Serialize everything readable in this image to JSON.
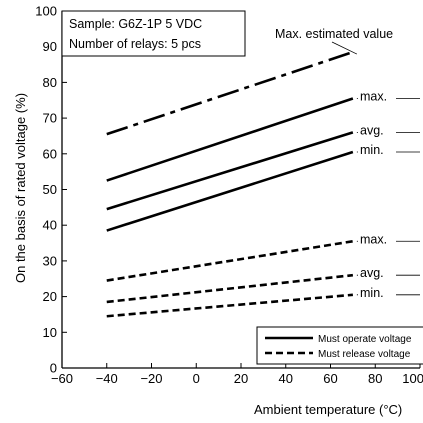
{
  "chart_data": {
    "type": "line",
    "title": "",
    "xlabel": "Ambient temperature (°C)",
    "ylabel": "On the basis of rated voltage (%)",
    "xlim": [
      -60,
      100
    ],
    "ylim": [
      0,
      100
    ],
    "xticks": [
      -60,
      -40,
      -20,
      0,
      20,
      40,
      60,
      80,
      100
    ],
    "yticks": [
      0,
      10,
      20,
      30,
      40,
      50,
      60,
      70,
      80,
      90,
      100
    ],
    "xtick_labels": [
      "−60",
      "−40",
      "−20",
      "0",
      "20",
      "40",
      "60",
      "80",
      "100"
    ],
    "ytick_labels": [
      "0",
      "10",
      "20",
      "30",
      "40",
      "50",
      "60",
      "70",
      "80",
      "90",
      "100"
    ],
    "grid": false,
    "sample_text": "Sample: G6Z-1P 5 VDC",
    "relays_text": "Number of relays: 5 pcs",
    "series": [
      {
        "name": "Max. estimated value",
        "style": "dash-dot",
        "group": "operate",
        "x": [
          -40,
          70
        ],
        "y": [
          65.5,
          88.5
        ]
      },
      {
        "name": "max.",
        "style": "solid",
        "group": "operate",
        "x": [
          -40,
          70
        ],
        "y": [
          52.5,
          75.5
        ]
      },
      {
        "name": "avg.",
        "style": "solid",
        "group": "operate",
        "x": [
          -40,
          70
        ],
        "y": [
          44.5,
          66
        ]
      },
      {
        "name": "min.",
        "style": "solid",
        "group": "operate",
        "x": [
          -40,
          70
        ],
        "y": [
          38.5,
          60.5
        ]
      },
      {
        "name": "max.",
        "style": "dashed",
        "group": "release",
        "x": [
          -40,
          70
        ],
        "y": [
          24.5,
          35.5
        ]
      },
      {
        "name": "avg.",
        "style": "dashed",
        "group": "release",
        "x": [
          -40,
          70
        ],
        "y": [
          18.5,
          26
        ]
      },
      {
        "name": "min.",
        "style": "dashed",
        "group": "release",
        "x": [
          -40,
          70
        ],
        "y": [
          14.5,
          20.5
        ]
      }
    ],
    "legend": {
      "placement": "bottom-right",
      "items": [
        {
          "label": "Must operate voltage",
          "style": "solid"
        },
        {
          "label": "Must release voltage",
          "style": "dashed"
        }
      ]
    },
    "colors": {
      "line": "#000000",
      "background": "#ffffff"
    }
  }
}
